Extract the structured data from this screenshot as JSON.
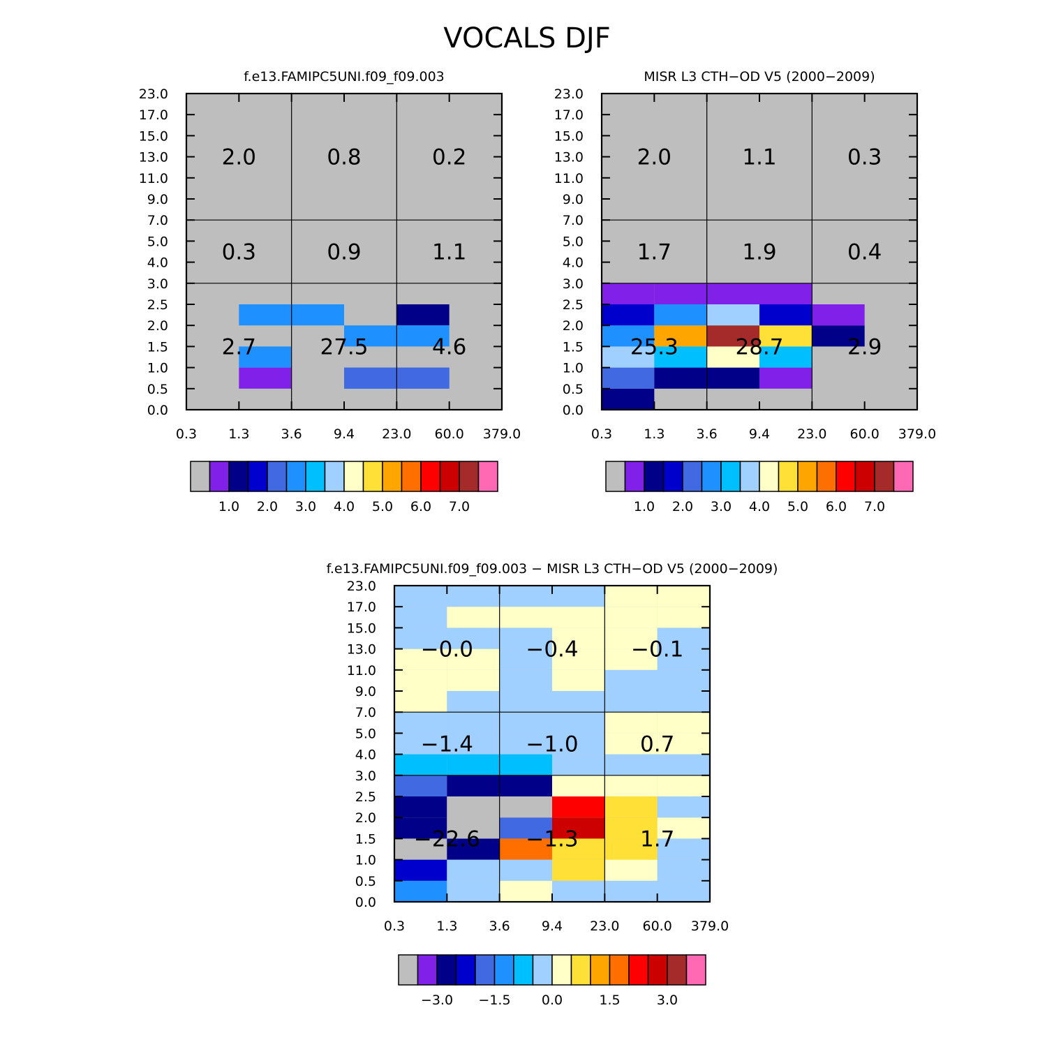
{
  "title": "VOCALS DJF",
  "chart_data": [
    {
      "type": "heatmap",
      "title": "f.e13.FAMIPC5UNI.f09_f09.003",
      "xlabel": "",
      "ylabel": "",
      "x_tick_labels": [
        "0.3",
        "1.3",
        "3.6",
        "9.4",
        "23.0",
        "60.0",
        "379.0"
      ],
      "y_tick_labels": [
        "0.0",
        "0.5",
        "1.0",
        "1.5",
        "2.0",
        "2.5",
        "3.0",
        "4.0",
        "5.0",
        "7.0",
        "9.0",
        "11.0",
        "13.0",
        "15.0",
        "17.0",
        "23.0"
      ],
      "bin_level_indices": [
        0,
        1,
        2,
        3,
        4,
        5,
        6,
        7,
        8,
        9,
        10,
        11,
        12,
        13,
        14,
        15
      ],
      "colorbar_labels": [
        "1.0",
        "2.0",
        "3.0",
        "4.0",
        "5.0",
        "6.0",
        "7.0"
      ],
      "colorbar_colors": [
        "#bebebe",
        "#8020e8",
        "#000088",
        "#0000cd",
        "#4169e1",
        "#1e90ff",
        "#00bfff",
        "#a0d0ff",
        "#ffffc8",
        "#ffe036",
        "#ffa500",
        "#ff6f00",
        "#ff0000",
        "#cd0000",
        "#a52a2a",
        "#ff69b4"
      ],
      "cells": [
        [
          4,
          5,
          4,
          2
        ],
        [
          3,
          5,
          1,
          5
        ],
        [
          3,
          4,
          1,
          6
        ],
        [
          3,
          5,
          1,
          4
        ],
        [
          1,
          2,
          1,
          1
        ],
        [
          1,
          2,
          2,
          5
        ],
        [
          3,
          5,
          3,
          5
        ],
        [
          1,
          3,
          4,
          5
        ]
      ],
      "region_values": [
        {
          "text": "2.7",
          "col": 0,
          "row": 0
        },
        {
          "text": "27.5",
          "col": 1,
          "row": 0
        },
        {
          "text": "4.6",
          "col": 2,
          "row": 0
        },
        {
          "text": "0.3",
          "col": 0,
          "row": 1
        },
        {
          "text": "0.9",
          "col": 1,
          "row": 1
        },
        {
          "text": "1.1",
          "col": 2,
          "row": 1
        },
        {
          "text": "2.0",
          "col": 0,
          "row": 2
        },
        {
          "text": "0.8",
          "col": 1,
          "row": 2
        },
        {
          "text": "0.2",
          "col": 2,
          "row": 2
        }
      ]
    },
    {
      "type": "heatmap",
      "title": "MISR L3 CTH-OD V5 (2000-2009)",
      "xlabel": "",
      "ylabel": "",
      "x_tick_labels": [
        "0.3",
        "1.3",
        "3.6",
        "9.4",
        "23.0",
        "60.0",
        "379.0"
      ],
      "y_tick_labels": [
        "0.0",
        "0.5",
        "1.0",
        "1.5",
        "2.0",
        "2.5",
        "3.0",
        "4.0",
        "5.0",
        "7.0",
        "9.0",
        "11.0",
        "13.0",
        "15.0",
        "17.0",
        "23.0"
      ],
      "colorbar_labels": [
        "1.0",
        "2.0",
        "3.0",
        "4.0",
        "5.0",
        "6.0",
        "7.0"
      ],
      "colorbar_colors": [
        "#bebebe",
        "#8020e8",
        "#000088",
        "#0000cd",
        "#4169e1",
        "#1e90ff",
        "#00bfff",
        "#a0d0ff",
        "#ffffc8",
        "#ffe036",
        "#ffa500",
        "#ff6f00",
        "#ff0000",
        "#cd0000",
        "#a52a2a",
        "#ff69b4"
      ],
      "cells": [
        [
          0,
          0,
          2
        ],
        [
          0,
          1,
          4
        ],
        [
          0,
          2,
          7
        ],
        [
          0,
          3,
          5
        ],
        [
          0,
          4,
          3
        ],
        [
          0,
          5,
          1
        ],
        [
          1,
          1,
          2
        ],
        [
          1,
          2,
          6
        ],
        [
          1,
          3,
          10
        ],
        [
          1,
          4,
          5
        ],
        [
          1,
          5,
          1
        ],
        [
          2,
          1,
          2
        ],
        [
          2,
          2,
          8
        ],
        [
          2,
          3,
          14
        ],
        [
          2,
          4,
          7
        ],
        [
          2,
          5,
          1
        ],
        [
          3,
          1,
          1
        ],
        [
          3,
          2,
          6
        ],
        [
          3,
          3,
          9
        ],
        [
          3,
          4,
          3
        ],
        [
          3,
          5,
          1
        ],
        [
          4,
          3,
          2
        ],
        [
          4,
          4,
          1
        ]
      ],
      "region_values": [
        {
          "text": "25.3",
          "col": 0,
          "row": 0
        },
        {
          "text": "28.7",
          "col": 1,
          "row": 0
        },
        {
          "text": "2.9",
          "col": 2,
          "row": 0
        },
        {
          "text": "1.7",
          "col": 0,
          "row": 1
        },
        {
          "text": "1.9",
          "col": 1,
          "row": 1
        },
        {
          "text": "0.4",
          "col": 2,
          "row": 1
        },
        {
          "text": "2.0",
          "col": 0,
          "row": 2
        },
        {
          "text": "1.1",
          "col": 1,
          "row": 2
        },
        {
          "text": "0.3",
          "col": 2,
          "row": 2
        }
      ]
    },
    {
      "type": "heatmap",
      "title": "f.e13.FAMIPC5UNI.f09_f09.003 - MISR L3 CTH-OD V5 (2000-2009)",
      "xlabel": "",
      "ylabel": "",
      "x_tick_labels": [
        "0.3",
        "1.3",
        "3.6",
        "9.4",
        "23.0",
        "60.0",
        "379.0"
      ],
      "y_tick_labels": [
        "0.0",
        "0.5",
        "1.0",
        "1.5",
        "2.0",
        "2.5",
        "3.0",
        "4.0",
        "5.0",
        "7.0",
        "9.0",
        "11.0",
        "13.0",
        "15.0",
        "17.0",
        "23.0"
      ],
      "colorbar_labels": [
        "-3.0",
        "-1.5",
        "0.0",
        "1.5",
        "3.0"
      ],
      "colorbar_colors": [
        "#bebebe",
        "#8020e8",
        "#000088",
        "#0000cd",
        "#4169e1",
        "#1e90ff",
        "#00bfff",
        "#a0d0ff",
        "#ffffc8",
        "#ffe036",
        "#ffa500",
        "#ff6f00",
        "#ff0000",
        "#cd0000",
        "#a52a2a",
        "#ff69b4"
      ],
      "grid": [
        [
          5,
          7,
          8,
          7,
          7,
          7
        ],
        [
          3,
          7,
          7,
          9,
          8,
          7
        ],
        [
          0,
          2,
          11,
          9,
          9,
          7
        ],
        [
          2,
          0,
          4,
          13,
          9,
          8
        ],
        [
          2,
          0,
          0,
          12,
          9,
          7
        ],
        [
          4,
          2,
          2,
          8,
          8,
          8
        ],
        [
          6,
          6,
          6,
          7,
          7,
          7
        ],
        [
          7,
          7,
          7,
          7,
          8,
          8
        ],
        [
          7,
          7,
          7,
          7,
          8,
          8
        ],
        [
          8,
          7,
          7,
          7,
          7,
          7
        ],
        [
          8,
          8,
          7,
          8,
          7,
          7
        ],
        [
          8,
          8,
          7,
          8,
          8,
          7
        ],
        [
          7,
          7,
          7,
          8,
          8,
          7
        ],
        [
          7,
          8,
          8,
          8,
          8,
          8
        ],
        [
          7,
          7,
          7,
          7,
          8,
          8
        ]
      ],
      "region_values": [
        {
          "text": "-22.6",
          "col": 0,
          "row": 0
        },
        {
          "text": "-1.3",
          "col": 1,
          "row": 0
        },
        {
          "text": "1.7",
          "col": 2,
          "row": 0
        },
        {
          "text": "-1.4",
          "col": 0,
          "row": 1
        },
        {
          "text": "-1.0",
          "col": 1,
          "row": 1
        },
        {
          "text": "0.7",
          "col": 2,
          "row": 1
        },
        {
          "text": "-0.0",
          "col": 0,
          "row": 2
        },
        {
          "text": "-0.4",
          "col": 1,
          "row": 2
        },
        {
          "text": "-0.1",
          "col": 2,
          "row": 2
        }
      ]
    }
  ]
}
